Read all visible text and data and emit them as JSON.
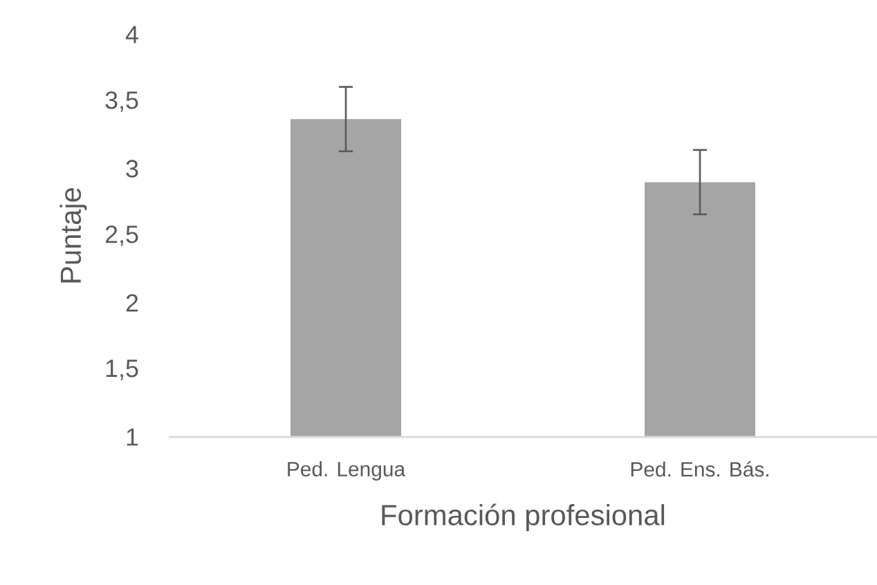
{
  "chart_data": {
    "type": "bar",
    "categories": [
      "Ped. Lengua",
      "Ped. Ens. Bás."
    ],
    "values": [
      3.37,
      2.9
    ],
    "errors": [
      0.24,
      0.24
    ],
    "color": "#a5a5a5",
    "xlabel": "Formación profesional",
    "ylabel": "Puntaje",
    "ylim": [
      1,
      4
    ],
    "yticks": [
      1,
      {
        "value": 1.5,
        "label": "1,5"
      },
      2,
      {
        "value": 2.5,
        "label": "2,5"
      },
      3,
      {
        "value": 3.5,
        "label": "3,5"
      },
      4
    ],
    "grid": false
  }
}
